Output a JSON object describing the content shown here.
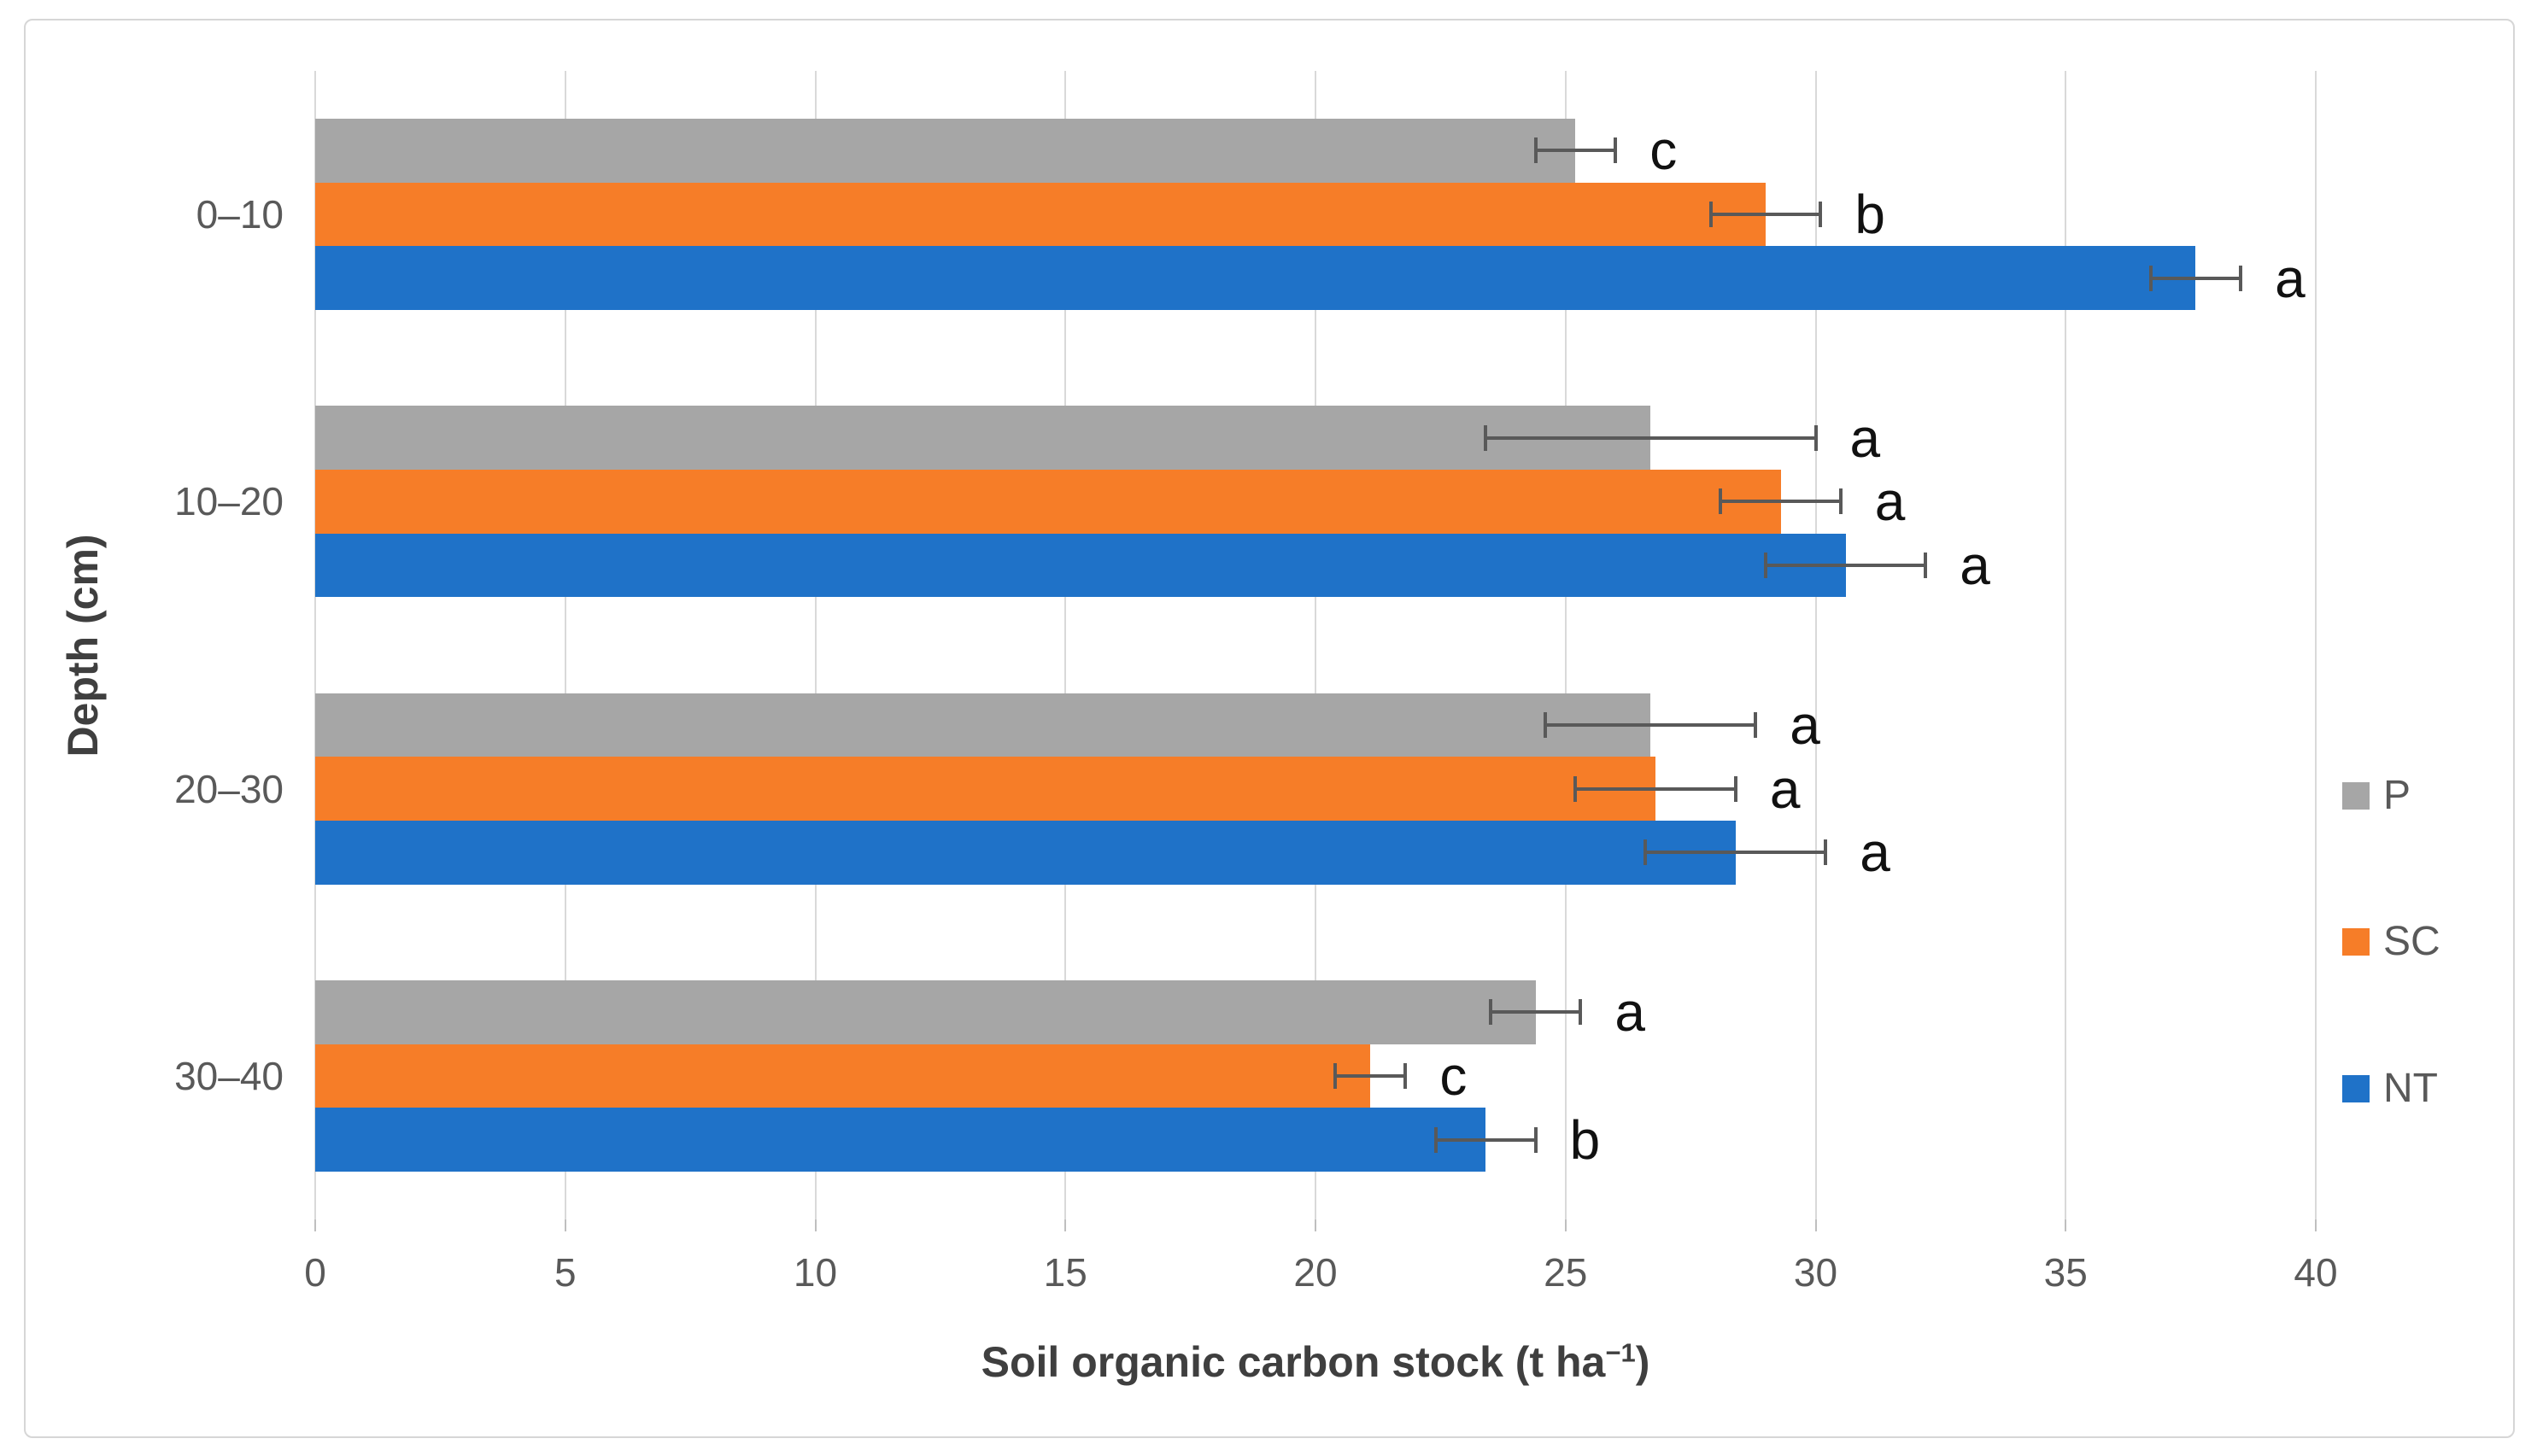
{
  "figure": {
    "background": "#ffffff",
    "border_color": "#d6d6d6"
  },
  "chart_data": {
    "type": "bar",
    "orientation": "horizontal",
    "title": "",
    "xlabel": "Soil organic carbon stock (t ha⁻¹)",
    "xlabel_parts": {
      "pre": "Soil organic carbon stock (t ha",
      "sup": "−1",
      "post": ")"
    },
    "ylabel": "Depth (cm)",
    "categories": [
      "0–10",
      "10–20",
      "20–30",
      "30–40"
    ],
    "x_ticks": [
      0,
      5,
      10,
      15,
      20,
      25,
      30,
      35,
      40
    ],
    "xlim": [
      0,
      40
    ],
    "grid": "vertical-major",
    "legend_position": "right",
    "series": [
      {
        "name": "P",
        "color": "#a6a6a6",
        "values": [
          25.2,
          26.7,
          26.7,
          24.4
        ],
        "errors": [
          0.8,
          3.3,
          2.1,
          0.9
        ],
        "letters": [
          "c",
          "a",
          "a",
          "a"
        ]
      },
      {
        "name": "SC",
        "color": "#f67d28",
        "values": [
          29.0,
          29.3,
          26.8,
          21.1
        ],
        "errors": [
          1.1,
          1.2,
          1.6,
          0.7
        ],
        "letters": [
          "b",
          "a",
          "a",
          "c"
        ]
      },
      {
        "name": "NT",
        "color": "#1f72c8",
        "values": [
          37.6,
          30.6,
          28.4,
          23.4
        ],
        "errors": [
          0.9,
          1.6,
          1.8,
          1.0
        ],
        "letters": [
          "a",
          "a",
          "a",
          "b"
        ]
      }
    ],
    "error_bar_color": "#595959",
    "letter_color": "#111111",
    "tick_label_color": "#595959",
    "axis_title_color": "#3f3f3f"
  }
}
